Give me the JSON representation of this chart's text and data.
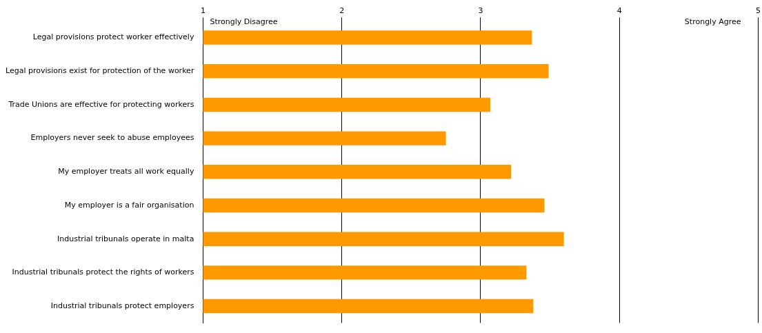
{
  "chart_data": {
    "type": "bar",
    "orientation": "horizontal",
    "categories": [
      "Legal provisions protect worker effectively",
      "Legal provisions exist for protection of the worker",
      "Trade Unions are effective for protecting workers",
      "Employers never seek to abuse employees",
      "My employer treats all work equally",
      "My employer is a fair organisation",
      "Industrial tribunals operate in malta",
      "Industrial tribunals protect the rights of workers",
      "Industrial tribunals protect employers"
    ],
    "values": [
      3.37,
      3.49,
      3.07,
      2.75,
      3.22,
      3.46,
      3.6,
      3.33,
      3.38
    ],
    "color": "#ff9900",
    "xlim": [
      1,
      5
    ],
    "xticks": [
      1,
      2,
      3,
      4,
      5
    ],
    "grid": "x",
    "annotations": [
      "Strongly Disagree",
      "Strongly Agree"
    ]
  }
}
